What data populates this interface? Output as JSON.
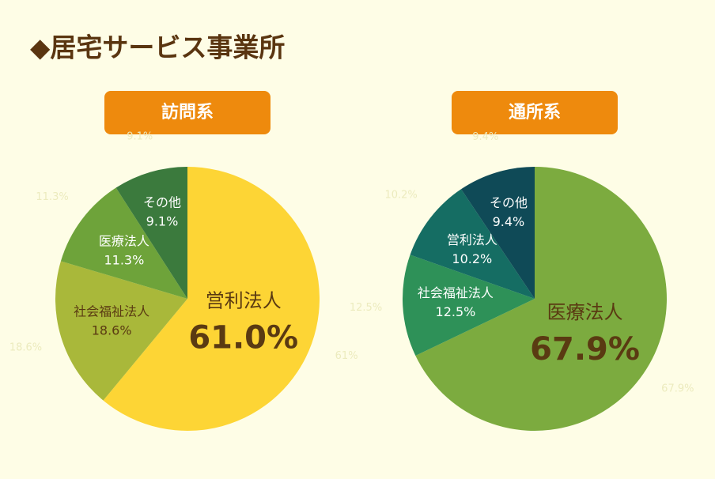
{
  "title": "◆居宅サービス事業所",
  "chart_data": [
    {
      "type": "pie",
      "title": "訪問系",
      "categories": [
        "営利法人",
        "社会福祉法人",
        "医療法人",
        "その他"
      ],
      "values": [
        61.0,
        18.6,
        11.3,
        9.1
      ],
      "value_labels": [
        "61.0%",
        "18.6%",
        "11.3%",
        "9.1%"
      ],
      "outer_labels": [
        "61%",
        "18.6%",
        "11.3%",
        "9.1%"
      ],
      "colors": [
        "#fdd535",
        "#a9b83a",
        "#6ea33a",
        "#3b7a3d"
      ]
    },
    {
      "type": "pie",
      "title": "通所系",
      "categories": [
        "医療法人",
        "社会福祉法人",
        "営利法人",
        "その他"
      ],
      "values": [
        67.9,
        12.5,
        10.2,
        9.4
      ],
      "value_labels": [
        "67.9%",
        "12.5%",
        "10.2%",
        "9.4%"
      ],
      "outer_labels": [
        "67.9%",
        "12.5%",
        "10.2%",
        "9.4%"
      ],
      "colors": [
        "#7cab3f",
        "#2e9158",
        "#156d63",
        "#0f4a57"
      ]
    }
  ]
}
